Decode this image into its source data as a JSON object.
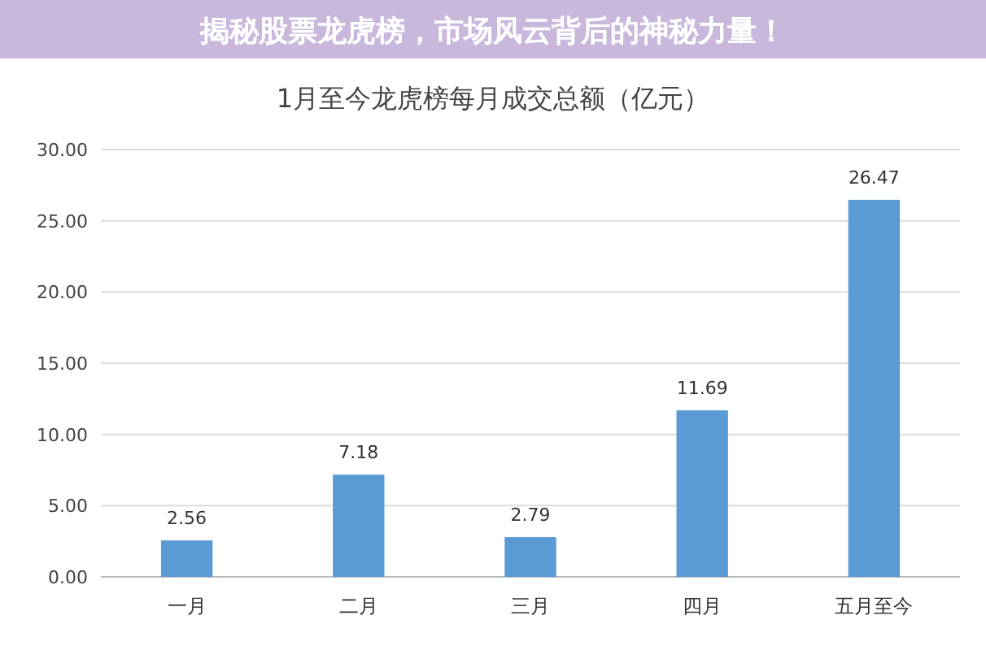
{
  "chart_data": {
    "type": "bar",
    "title": "1月至今龙虎榜每月成交总额（亿元）",
    "subtitle": "揭秘股票龙虎榜，市场风云背后的神秘力量！",
    "categories": [
      "一月",
      "二月",
      "三月",
      "四月",
      "五月至今"
    ],
    "values": [
      2.56,
      7.18,
      2.79,
      11.69,
      26.47
    ],
    "color": "#5b9bd5",
    "ylim": [
      0,
      30
    ],
    "yticks": [
      {
        "value": 0,
        "label": "0.00"
      },
      {
        "value": 5,
        "label": "5.00"
      },
      {
        "value": 10,
        "label": "10.00"
      },
      {
        "value": 15,
        "label": "15.00"
      },
      {
        "value": 20,
        "label": "20.00"
      },
      {
        "value": 25,
        "label": "25.00"
      },
      {
        "value": 30,
        "label": "30.00"
      }
    ],
    "grid": "y",
    "data_labels": true
  }
}
